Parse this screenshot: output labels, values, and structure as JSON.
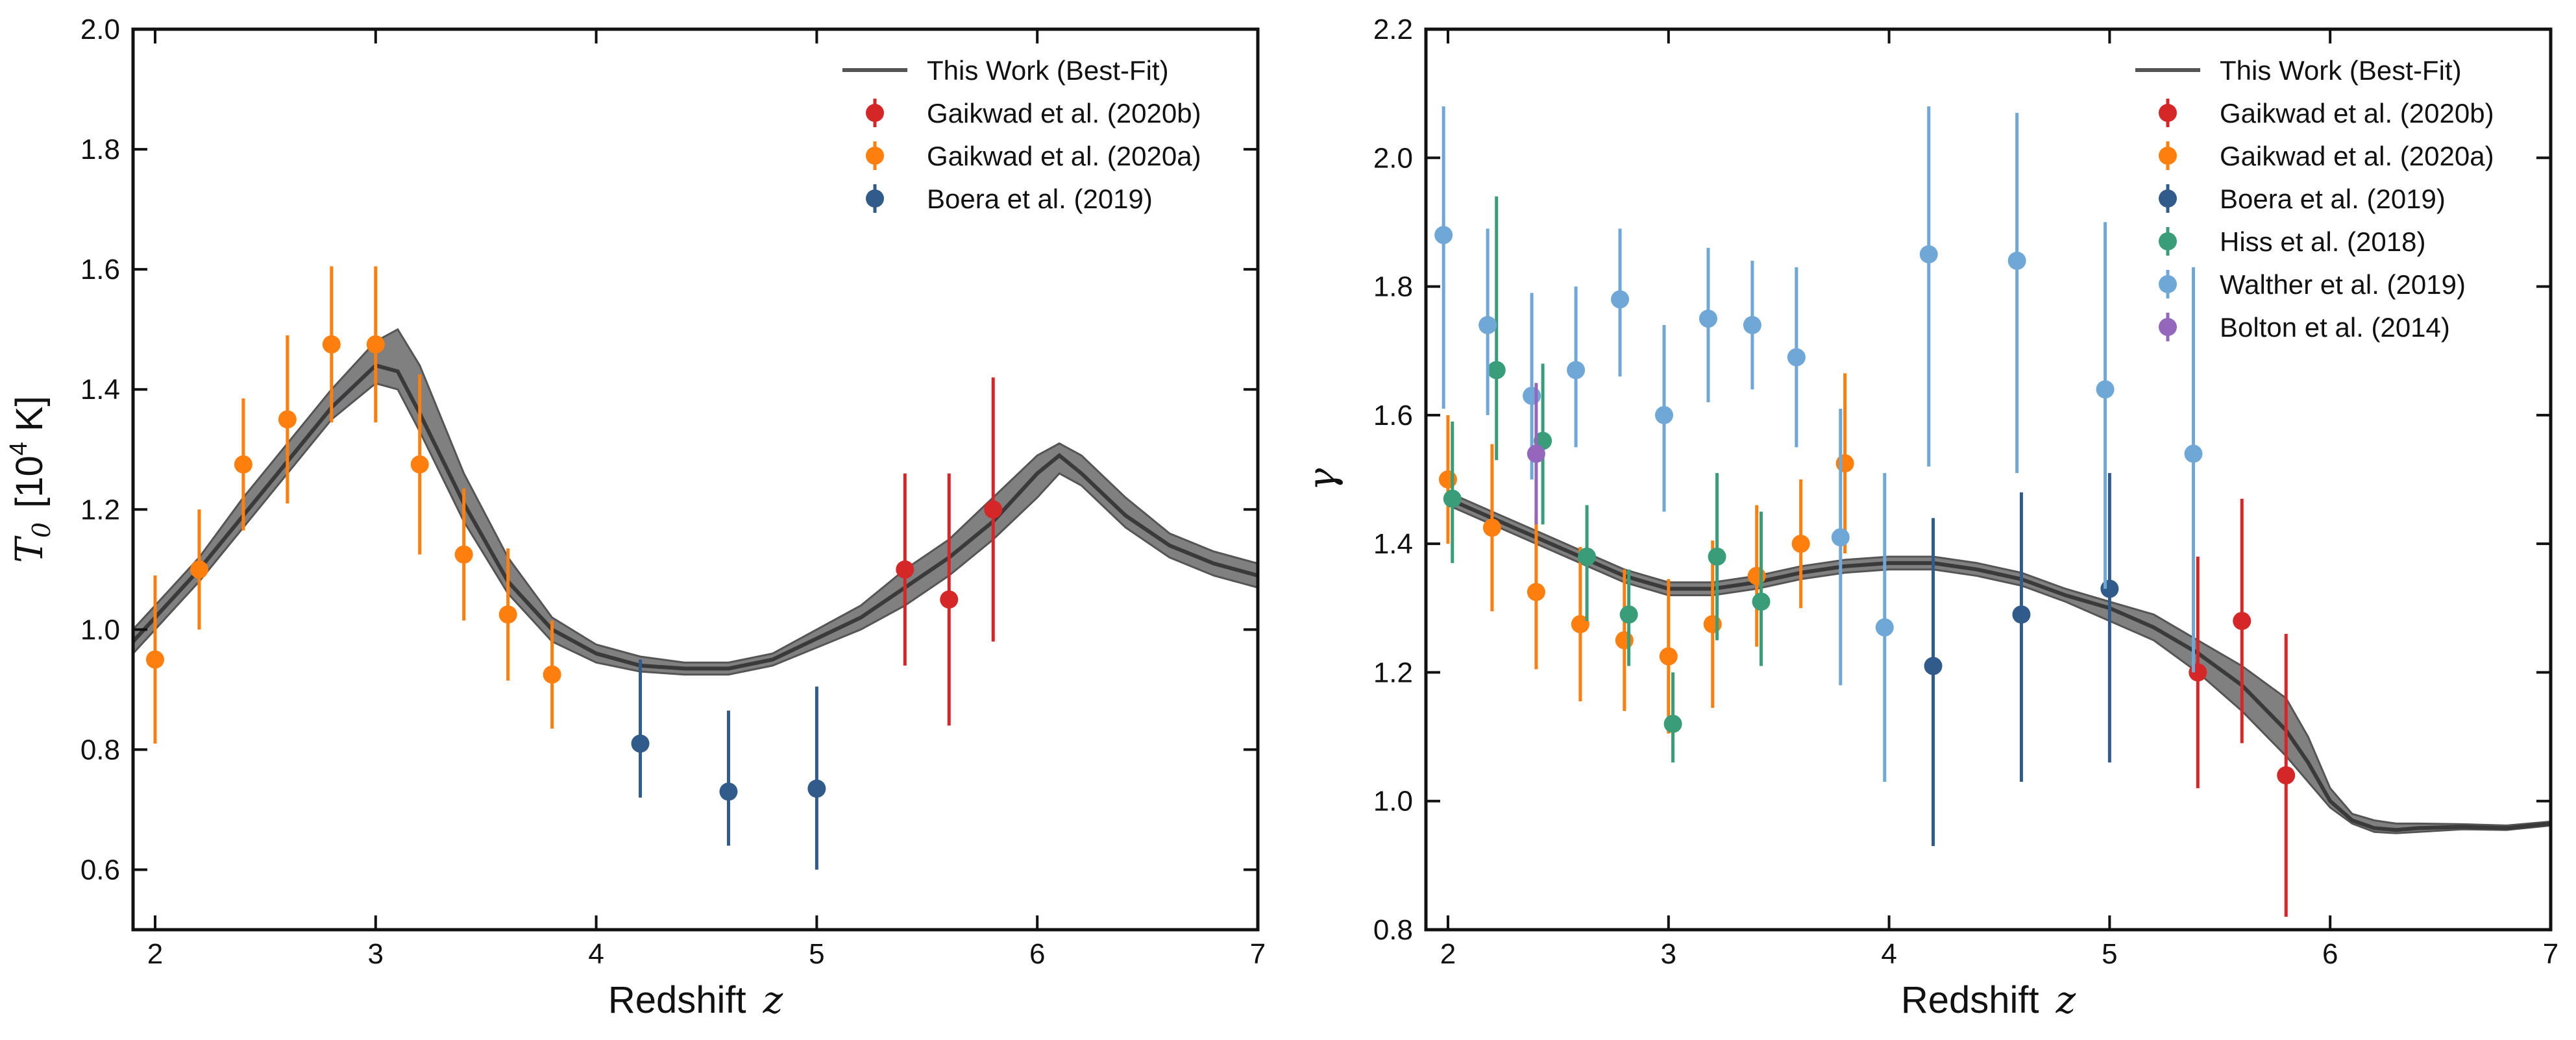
{
  "chart_data": [
    {
      "type": "line",
      "panel": "left",
      "xlabel": "Redshift",
      "xlabel_symbol": "z",
      "ylabel_symbol": "T",
      "ylabel_subscript": "0",
      "ylabel_unit_prefix": "[10",
      "ylabel_unit_exp": "4",
      "ylabel_unit_suffix": " K]",
      "xlim": [
        1.9,
        7.0
      ],
      "ylim": [
        0.5,
        2.0
      ],
      "xticks": [
        "2",
        "3",
        "4",
        "5",
        "6",
        "7"
      ],
      "yticks": [
        "0.6",
        "0.8",
        "1.0",
        "1.2",
        "1.4",
        "1.6",
        "1.8",
        "2.0"
      ],
      "legend_position": "top-right",
      "best_fit": {
        "name": "This Work (Best-Fit)",
        "color": "#555555",
        "x": [
          1.9,
          2.0,
          2.2,
          2.4,
          2.6,
          2.8,
          3.0,
          3.1,
          3.2,
          3.4,
          3.6,
          3.8,
          4.0,
          4.2,
          4.4,
          4.6,
          4.8,
          5.0,
          5.2,
          5.4,
          5.6,
          5.8,
          6.0,
          6.1,
          6.2,
          6.4,
          6.6,
          6.8,
          7.0
        ],
        "center": [
          0.98,
          1.02,
          1.1,
          1.19,
          1.28,
          1.37,
          1.44,
          1.43,
          1.36,
          1.21,
          1.08,
          1.0,
          0.96,
          0.94,
          0.935,
          0.935,
          0.95,
          0.985,
          1.02,
          1.07,
          1.12,
          1.18,
          1.26,
          1.29,
          1.26,
          1.19,
          1.14,
          1.11,
          1.09
        ],
        "lower": [
          0.96,
          1.0,
          1.08,
          1.17,
          1.26,
          1.35,
          1.41,
          1.4,
          1.33,
          1.18,
          1.06,
          0.98,
          0.945,
          0.93,
          0.925,
          0.925,
          0.94,
          0.97,
          1.0,
          1.04,
          1.09,
          1.15,
          1.22,
          1.26,
          1.24,
          1.17,
          1.12,
          1.09,
          1.07
        ],
        "upper": [
          1.0,
          1.04,
          1.12,
          1.22,
          1.31,
          1.4,
          1.48,
          1.5,
          1.44,
          1.26,
          1.12,
          1.02,
          0.975,
          0.955,
          0.945,
          0.945,
          0.96,
          1.0,
          1.04,
          1.1,
          1.15,
          1.22,
          1.29,
          1.31,
          1.29,
          1.22,
          1.16,
          1.13,
          1.11
        ]
      },
      "series": [
        {
          "name": "Gaikwad et al. (2020b)",
          "color": "#d62728",
          "x": [
            5.4,
            5.6,
            5.8
          ],
          "y": [
            1.1,
            1.05,
            1.2
          ],
          "yerr_low": [
            0.16,
            0.21,
            0.22
          ],
          "yerr_high": [
            0.16,
            0.21,
            0.22
          ]
        },
        {
          "name": "Gaikwad et al. (2020a)",
          "color": "#ff7f0e",
          "x": [
            2.0,
            2.2,
            2.4,
            2.6,
            2.8,
            3.0,
            3.2,
            3.4,
            3.6,
            3.8
          ],
          "y": [
            0.95,
            1.1,
            1.275,
            1.35,
            1.475,
            1.475,
            1.275,
            1.125,
            1.025,
            0.925
          ],
          "yerr_low": [
            0.14,
            0.1,
            0.11,
            0.14,
            0.13,
            0.13,
            0.15,
            0.11,
            0.11,
            0.09
          ],
          "yerr_high": [
            0.14,
            0.1,
            0.11,
            0.14,
            0.13,
            0.13,
            0.15,
            0.11,
            0.11,
            0.09
          ]
        },
        {
          "name": "Boera et al. (2019)",
          "color": "#315b8a",
          "x": [
            4.2,
            4.6,
            5.0
          ],
          "y": [
            0.81,
            0.73,
            0.735
          ],
          "yerr_low": [
            0.09,
            0.09,
            0.135
          ],
          "yerr_high": [
            0.14,
            0.135,
            0.17
          ]
        }
      ]
    },
    {
      "type": "line",
      "panel": "right",
      "xlabel": "Redshift",
      "xlabel_symbol": "z",
      "ylabel_symbol": "γ",
      "xlim": [
        1.9,
        7.0
      ],
      "ylim": [
        0.8,
        2.2
      ],
      "xticks": [
        "2",
        "3",
        "4",
        "5",
        "6",
        "7"
      ],
      "yticks": [
        "0.8",
        "1.0",
        "1.2",
        "1.4",
        "1.6",
        "1.8",
        "2.0",
        "2.2"
      ],
      "legend_position": "top-right",
      "best_fit": {
        "name": "This Work (Best-Fit)",
        "color": "#555555",
        "x": [
          2.0,
          2.2,
          2.4,
          2.6,
          2.8,
          3.0,
          3.2,
          3.4,
          3.6,
          3.8,
          4.0,
          4.2,
          4.4,
          4.6,
          4.8,
          5.0,
          5.2,
          5.4,
          5.6,
          5.8,
          5.9,
          6.0,
          6.1,
          6.2,
          6.3,
          6.4,
          6.6,
          6.8,
          7.0
        ],
        "center": [
          1.47,
          1.44,
          1.41,
          1.38,
          1.35,
          1.33,
          1.33,
          1.34,
          1.355,
          1.365,
          1.37,
          1.37,
          1.36,
          1.345,
          1.32,
          1.3,
          1.27,
          1.23,
          1.18,
          1.11,
          1.06,
          1.0,
          0.97,
          0.958,
          0.955,
          0.958,
          0.96,
          0.958,
          0.965
        ],
        "lower": [
          1.46,
          1.43,
          1.4,
          1.37,
          1.34,
          1.32,
          1.32,
          1.33,
          1.345,
          1.355,
          1.36,
          1.36,
          1.35,
          1.335,
          1.31,
          1.28,
          1.25,
          1.2,
          1.14,
          1.07,
          1.03,
          0.99,
          0.965,
          0.952,
          0.95,
          0.952,
          0.956,
          0.955,
          0.962
        ],
        "upper": [
          1.48,
          1.45,
          1.42,
          1.39,
          1.36,
          1.34,
          1.34,
          1.35,
          1.365,
          1.375,
          1.38,
          1.38,
          1.37,
          1.355,
          1.33,
          1.31,
          1.29,
          1.25,
          1.21,
          1.16,
          1.1,
          1.02,
          0.98,
          0.97,
          0.965,
          0.965,
          0.964,
          0.962,
          0.968
        ]
      },
      "series": [
        {
          "name": "Gaikwad et al. (2020b)",
          "color": "#d62728",
          "x": [
            5.4,
            5.6,
            5.8
          ],
          "y": [
            1.2,
            1.28,
            1.04
          ],
          "yerr_low": [
            0.18,
            0.19,
            0.22
          ],
          "yerr_high": [
            0.18,
            0.19,
            0.22
          ]
        },
        {
          "name": "Gaikwad et al. (2020a)",
          "color": "#ff7f0e",
          "x": [
            2.0,
            2.2,
            2.4,
            2.6,
            2.8,
            3.0,
            3.2,
            3.4,
            3.6,
            3.8
          ],
          "y": [
            1.5,
            1.425,
            1.325,
            1.275,
            1.25,
            1.225,
            1.275,
            1.35,
            1.4,
            1.525
          ],
          "yerr_low": [
            0.1,
            0.13,
            0.12,
            0.12,
            0.11,
            0.12,
            0.13,
            0.11,
            0.1,
            0.14
          ],
          "yerr_high": [
            0.1,
            0.13,
            0.12,
            0.12,
            0.11,
            0.12,
            0.13,
            0.11,
            0.1,
            0.14
          ]
        },
        {
          "name": "Boera et al. (2019)",
          "color": "#315b8a",
          "x": [
            4.2,
            4.6,
            5.0
          ],
          "y": [
            1.21,
            1.29,
            1.33
          ],
          "yerr_low": [
            0.28,
            0.26,
            0.27
          ],
          "yerr_high": [
            0.23,
            0.19,
            0.18
          ]
        },
        {
          "name": "Hiss et al. (2018)",
          "color": "#3a9d7a",
          "x": [
            2.02,
            2.22,
            2.43,
            2.63,
            2.82,
            3.02,
            3.22,
            3.42
          ],
          "y": [
            1.47,
            1.67,
            1.56,
            1.38,
            1.29,
            1.12,
            1.38,
            1.31
          ],
          "yerr_low": [
            0.1,
            0.14,
            0.13,
            0.1,
            0.08,
            0.06,
            0.13,
            0.1
          ],
          "yerr_high": [
            0.12,
            0.27,
            0.12,
            0.08,
            0.07,
            0.08,
            0.13,
            0.14
          ]
        },
        {
          "name": "Walther et al. (2019)",
          "color": "#6fa8d6",
          "x": [
            1.98,
            2.18,
            2.38,
            2.58,
            2.78,
            2.98,
            3.18,
            3.38,
            3.58,
            3.78,
            3.98,
            4.18,
            4.58,
            4.98,
            5.38
          ],
          "y": [
            1.88,
            1.74,
            1.63,
            1.67,
            1.78,
            1.6,
            1.75,
            1.74,
            1.69,
            1.41,
            1.27,
            1.85,
            1.84,
            1.64,
            1.54
          ],
          "yerr_low": [
            0.27,
            0.14,
            0.13,
            0.12,
            0.12,
            0.15,
            0.13,
            0.1,
            0.14,
            0.23,
            0.24,
            0.33,
            0.33,
            0.31,
            0.34
          ],
          "yerr_high": [
            0.2,
            0.15,
            0.16,
            0.13,
            0.11,
            0.14,
            0.11,
            0.1,
            0.14,
            0.2,
            0.24,
            0.23,
            0.23,
            0.26,
            0.29
          ]
        },
        {
          "name": "Bolton et al. (2014)",
          "color": "#9467bd",
          "x": [
            2.4
          ],
          "y": [
            1.54
          ],
          "yerr_low": [
            0.11
          ],
          "yerr_high": [
            0.11
          ]
        }
      ]
    }
  ]
}
